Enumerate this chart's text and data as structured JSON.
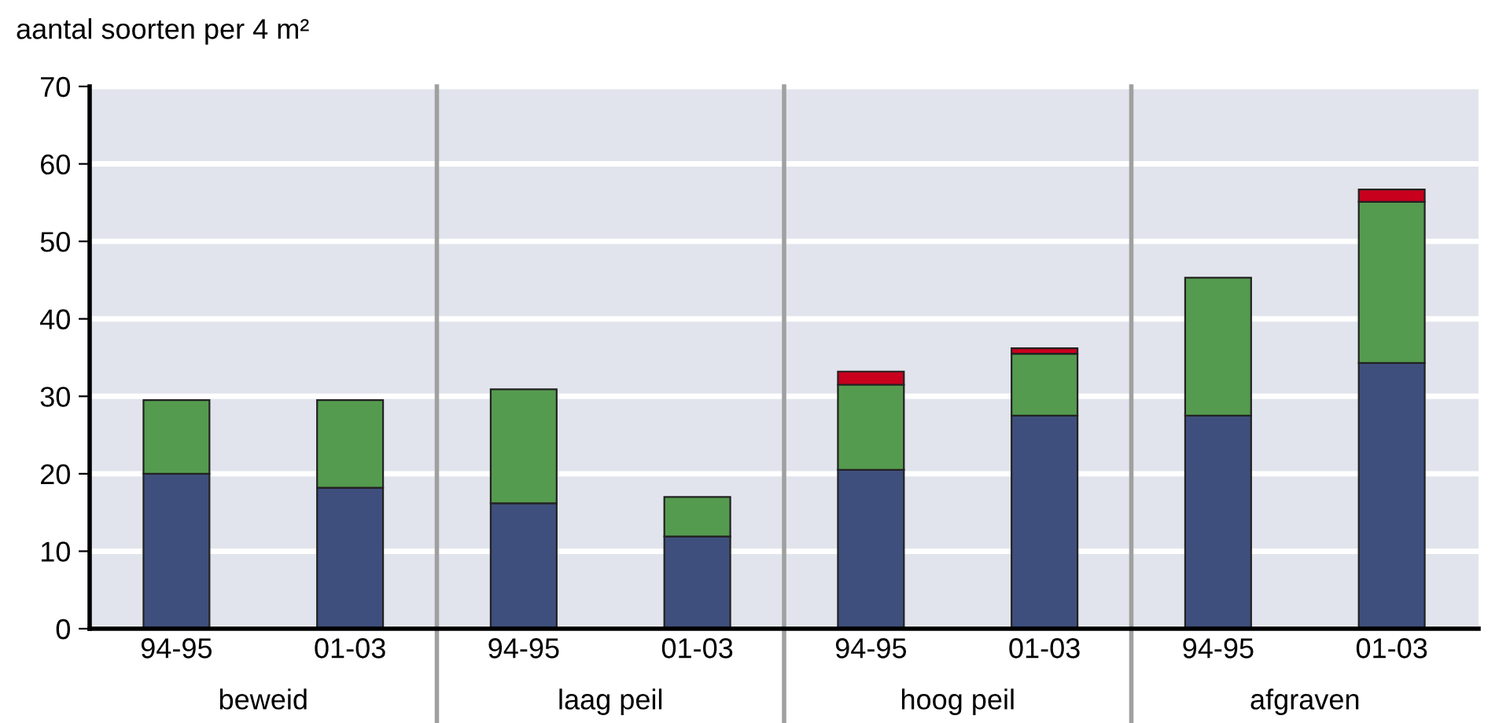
{
  "chart_data": {
    "type": "bar",
    "stacked": true,
    "ylabel": "aantal soorten per 4 m²",
    "categories": [
      "94-95",
      "01-03",
      "94-95",
      "01-03",
      "94-95",
      "01-03",
      "94-95",
      "01-03"
    ],
    "annotations": [
      "beweid",
      "laag peil",
      "hoog peil",
      "afgraven"
    ],
    "series": [
      {
        "color": "#3f4f7d",
        "values": [
          20,
          18.2,
          16.2,
          11.9,
          20.5,
          27.5,
          27.5,
          34.3
        ]
      },
      {
        "color": "#559b4f",
        "values": [
          9.5,
          11.3,
          14.7,
          5.1,
          11,
          8,
          17.8,
          20.8
        ]
      },
      {
        "color": "#c8001e",
        "values": [
          null,
          null,
          null,
          null,
          1.7,
          0.7,
          null,
          1.6
        ]
      }
    ],
    "ylim": [
      0,
      70
    ],
    "yticks": [
      0,
      10,
      20,
      30,
      40,
      50,
      60,
      70
    ],
    "grid": "y"
  }
}
